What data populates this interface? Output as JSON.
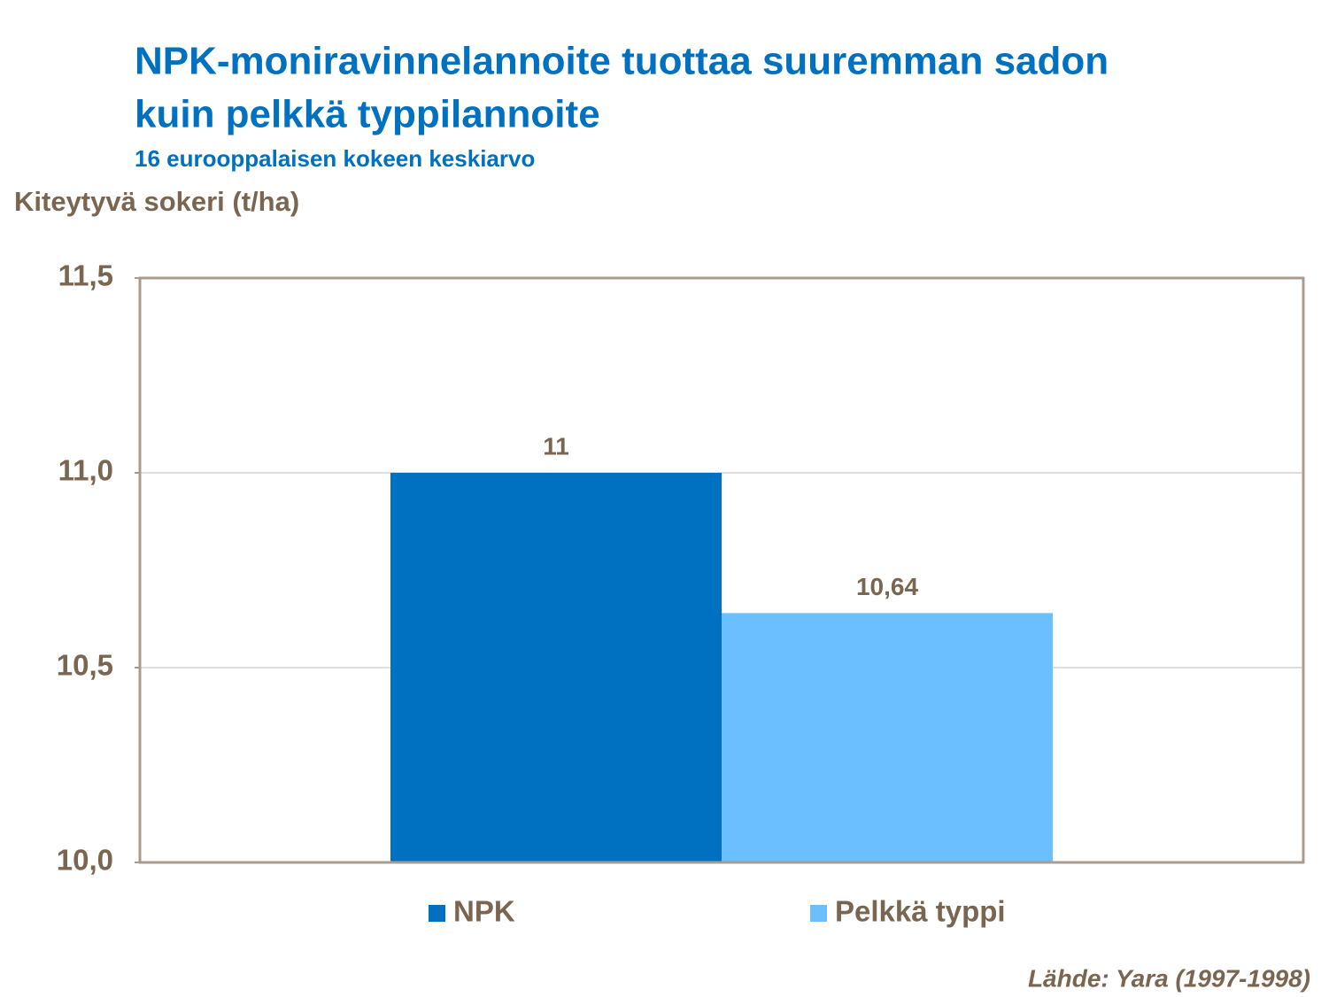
{
  "chart_data": {
    "type": "bar",
    "title": [
      "NPK-moniravinnelannoite tuottaa suuremman sadon",
      "kuin pelkkä typpilannoite"
    ],
    "subtitle": "16 eurooppalaisen kokeen keskiarvo",
    "y_label": "Kiteytyvä sokeri (t/ha)",
    "source": "Lähde: Yara (1997-1998)",
    "categories": [
      null
    ],
    "series": [
      {
        "name": "NPK",
        "color": "#0070c0",
        "values": [
          11
        ],
        "value_labels": [
          "11"
        ]
      },
      {
        "name": "Pelkkä typpi",
        "color": "#6bbfff",
        "values": [
          10.64
        ],
        "value_labels": [
          "10,64"
        ]
      }
    ],
    "ylim": [
      10,
      11.5
    ],
    "yticks": [
      {
        "value": 10,
        "label": "10,0"
      },
      {
        "value": 10.5,
        "label": "10,5"
      },
      {
        "value": 11,
        "label": "11,0"
      },
      {
        "value": 11.5,
        "label": "11,5"
      }
    ],
    "grid": true,
    "legend": "bottom"
  }
}
